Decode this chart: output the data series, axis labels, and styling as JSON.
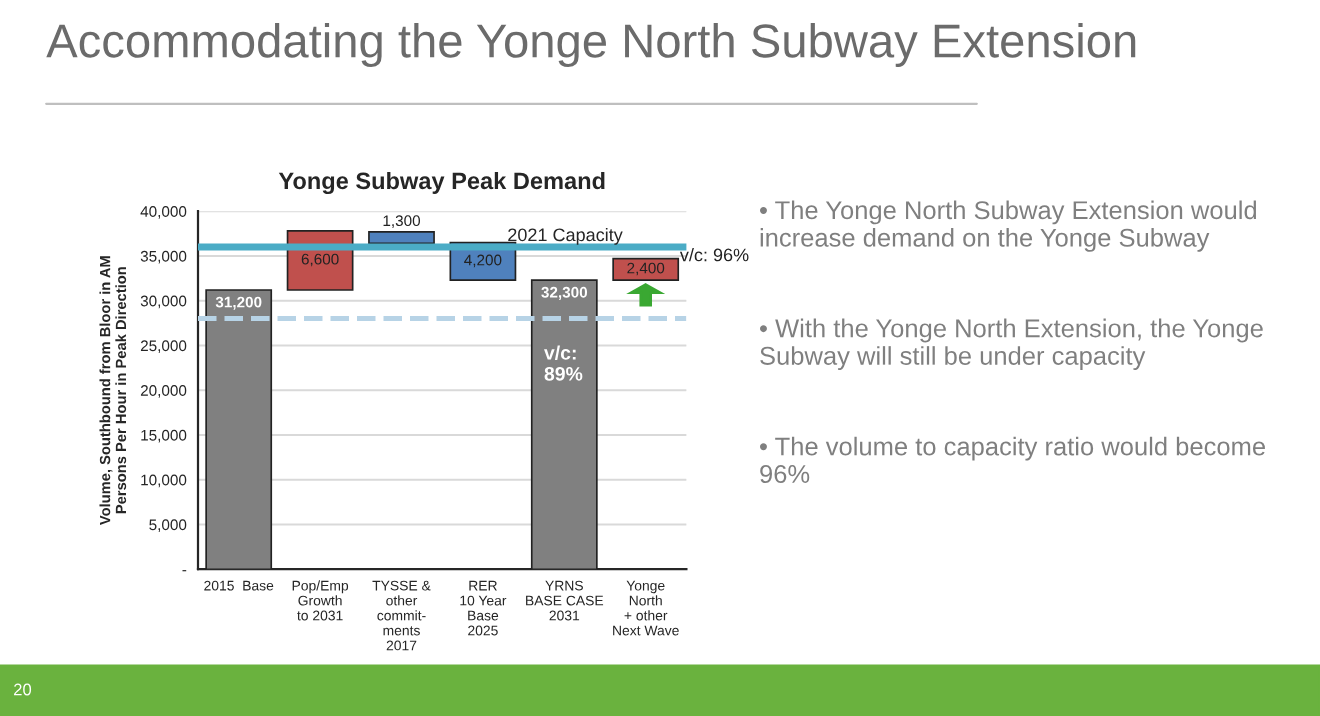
{
  "chart_data": {
    "type": "bar",
    "title": "Yonge Subway Peak Demand",
    "ylabel": "Volume, Southbound from Bloor in AM\nPersons Per Hour in Peak Direction",
    "categories": [
      "2015  Base",
      "Pop/Emp\nGrowth\nto 2031",
      "TYSSE &\nother\ncommit-\nments\n2017",
      "RER\n10 Year\nBase\n2025",
      "YRNS\nBASE CASE\n2031",
      "Yonge\nNorth\n+ other\nNext Wave"
    ],
    "values": [
      31200,
      6600,
      1300,
      4200,
      32300,
      2400
    ],
    "base": [
      0,
      31200,
      36400,
      32300,
      0,
      32300
    ],
    "colors": [
      "#808080",
      "#c0504d",
      "#4f81bd",
      "#4f81bd",
      "#808080",
      "#c0504d"
    ],
    "value_labels": [
      "31,200",
      "6,600",
      "1,300",
      "4,200",
      "32,300",
      "2,400"
    ],
    "ylim": [
      0,
      40000
    ],
    "yticks": [
      {
        "value": 0,
        "label": "-"
      },
      {
        "value": 5000,
        "label": "5,000"
      },
      {
        "value": 10000,
        "label": "10,000"
      },
      {
        "value": 15000,
        "label": "15,000"
      },
      {
        "value": 20000,
        "label": "20,000"
      },
      {
        "value": 25000,
        "label": "25,000"
      },
      {
        "value": 30000,
        "label": "30,000"
      },
      {
        "value": 35000,
        "label": "35,000"
      },
      {
        "value": 40000,
        "label": "40,000"
      }
    ],
    "grid": "y",
    "ref_lines": [
      {
        "axis": "y",
        "value": 36000,
        "label": "2021 Capacity",
        "color": "#4bacc6"
      },
      {
        "axis": "y",
        "value": 28000,
        "color": "#b7d3e6",
        "line_style": "dashed"
      }
    ],
    "annotations": [
      {
        "text": "v/c: 96%",
        "x": "Yonge\nNorth\n+ other\nNext Wave",
        "y": 34000
      },
      "v/c:\n89%",
      "Accommodating the Yonge North Subway Extension",
      "• The Yonge North Subway Extension would increase demand on the Yonge Subway",
      "• With the Yonge North Extension, the Yonge Subway will still be under capacity",
      "• The volume to capacity ratio would become 96%",
      "20"
    ]
  }
}
